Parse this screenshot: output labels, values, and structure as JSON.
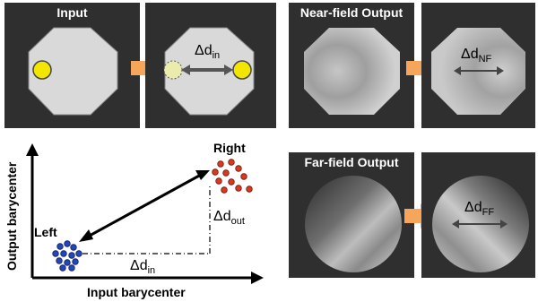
{
  "panels": {
    "input": {
      "title": "Input"
    },
    "near_field": {
      "title": "Near-field Output"
    },
    "far_field": {
      "title": "Far-field Output"
    }
  },
  "labels": {
    "delta": "Δd",
    "sub_in": "in",
    "sub_nf": "NF",
    "sub_ff": "FF",
    "sub_out": "out"
  },
  "plot": {
    "x_axis_label": "Input barycenter",
    "y_axis_label": "Output barycenter",
    "left_cluster": "Left",
    "right_cluster": "Right"
  },
  "colors": {
    "panel_bg": "#2f2f2f",
    "octagon": "#d9d9d9",
    "spot": "#f2e600",
    "arrow_orange": "#f5a65a",
    "left_dots": "#2446b8",
    "right_dots": "#d93a1f"
  }
}
